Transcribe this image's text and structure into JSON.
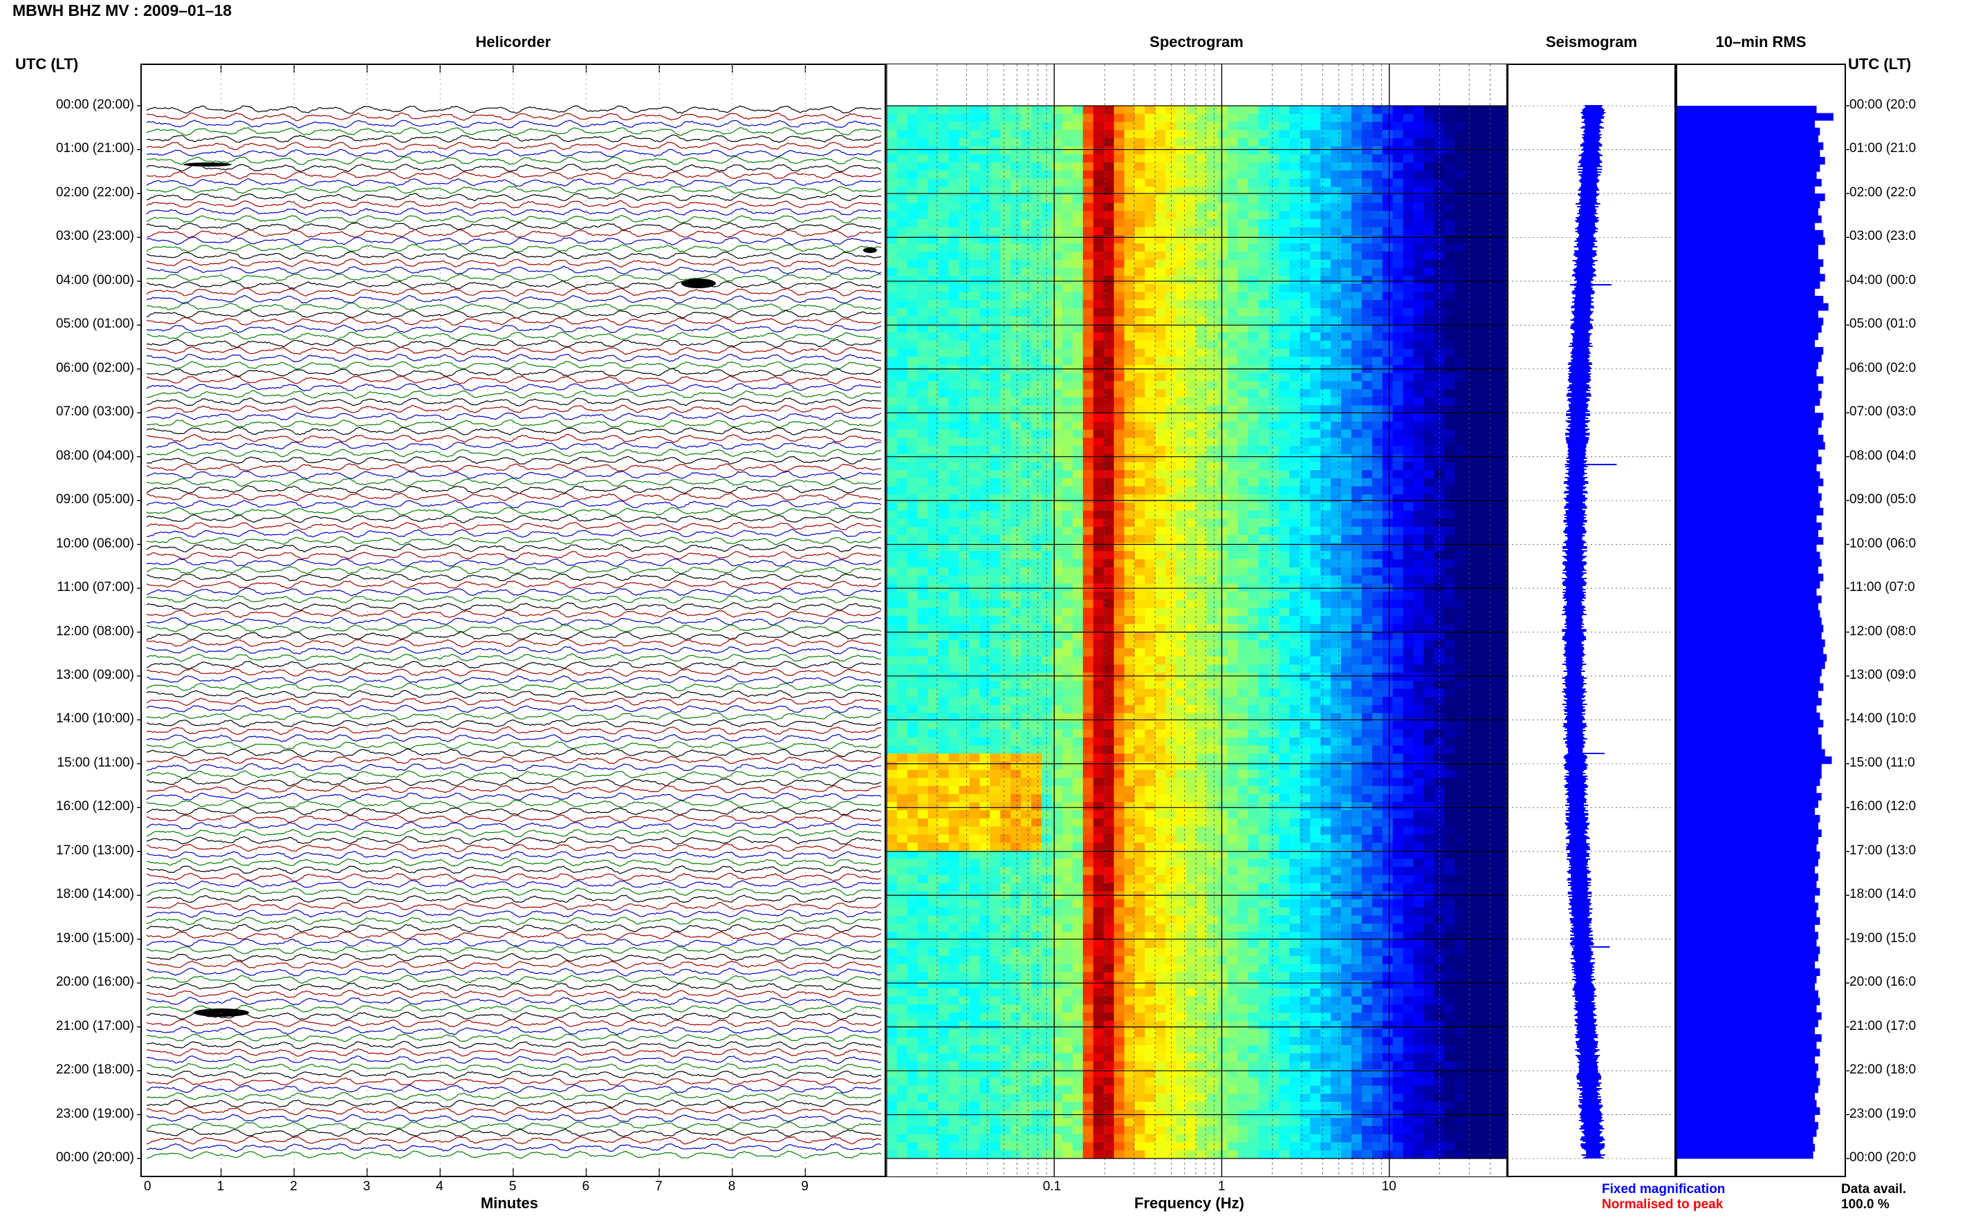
{
  "title": "MBWH BHZ MV : 2009–01–18",
  "headers": {
    "left_axis": "UTC (LT)",
    "right_axis": "UTC (LT)",
    "helicorder": "Helicorder",
    "spectrogram": "Spectrogram",
    "seismogram": "Seismogram",
    "rms": "10–min RMS"
  },
  "time_labels": [
    "00:00 (20:00)",
    "01:00 (21:00)",
    "02:00 (22:00)",
    "03:00 (23:00)",
    "04:00 (00:00)",
    "05:00 (01:00)",
    "06:00 (02:00)",
    "07:00 (03:00)",
    "08:00 (04:00)",
    "09:00 (05:00)",
    "10:00 (06:00)",
    "11:00 (07:00)",
    "12:00 (08:00)",
    "13:00 (09:00)",
    "14:00 (10:00)",
    "15:00 (11:00)",
    "16:00 (12:00)",
    "17:00 (13:00)",
    "18:00 (14:00)",
    "19:00 (15:00)",
    "20:00 (16:00)",
    "21:00 (17:00)",
    "22:00 (18:00)",
    "23:00 (19:00)",
    "00:00 (20:00)"
  ],
  "right_time_labels": [
    "00:00 (20:0",
    "01:00 (21:0",
    "02:00 (22:0",
    "03:00 (23:0",
    "04:00 (00:0",
    "05:00 (01:0",
    "06:00 (02:0",
    "07:00 (03:0",
    "08:00 (04:0",
    "09:00 (05:0",
    "10:00 (06:0",
    "11:00 (07:0",
    "12:00 (08:0",
    "13:00 (09:0",
    "14:00 (10:0",
    "15:00 (11:0",
    "16:00 (12:0",
    "17:00 (13:0",
    "18:00 (14:0",
    "19:00 (15:0",
    "20:00 (16:0",
    "21:00 (17:0",
    "22:00 (18:0",
    "23:00 (19:0",
    "00:00 (20:0"
  ],
  "footer": {
    "fixed": "Fixed magnification",
    "normalised": "Normalised to peak",
    "avail_label": "Data avail.",
    "avail_value": "100.0 %"
  },
  "colors": {
    "fixed": "#0000ff",
    "normalised": "#ff0000",
    "traces": [
      "#000000",
      "#a00000",
      "#0000c0",
      "#008000"
    ],
    "rms_bar": "#0000ff"
  },
  "chart_data": [
    {
      "type": "line",
      "panel": "helicorder",
      "title": "Helicorder",
      "xlabel": "Minutes",
      "xlim": [
        0,
        10
      ],
      "x_ticks": [
        "0",
        "1",
        "2",
        "3",
        "4",
        "5",
        "6",
        "7",
        "8",
        "9"
      ],
      "lines_per_hour": 6,
      "hours": 24
    },
    {
      "type": "heatmap",
      "panel": "spectrogram",
      "title": "Spectrogram",
      "xlabel": "Frequency (Hz)",
      "x_scale": "log",
      "xlim": [
        0.01,
        50
      ],
      "x_ticks": [
        "0.1",
        "1",
        "10"
      ],
      "peak_band_hz": [
        0.15,
        0.25
      ]
    },
    {
      "type": "line",
      "panel": "seismogram",
      "title": "Seismogram"
    },
    {
      "type": "bar",
      "panel": "rms",
      "title": "10–min RMS",
      "orientation": "horizontal",
      "values": [
        0.83,
        0.93,
        0.82,
        0.85,
        0.84,
        0.87,
        0.85,
        0.88,
        0.85,
        0.83,
        0.86,
        0.82,
        0.88,
        0.85,
        0.84,
        0.86,
        0.82,
        0.87,
        0.88,
        0.84,
        0.84,
        0.87,
        0.85,
        0.88,
        0.85,
        0.82,
        0.87,
        0.9,
        0.84,
        0.87,
        0.86,
        0.84,
        0.82,
        0.87,
        0.86,
        0.84,
        0.83,
        0.87,
        0.84,
        0.86,
        0.85,
        0.82,
        0.87,
        0.86,
        0.84,
        0.87,
        0.88,
        0.84,
        0.86,
        0.83,
        0.85,
        0.87,
        0.84,
        0.86,
        0.85,
        0.87,
        0.83,
        0.86,
        0.84,
        0.87,
        0.83,
        0.85,
        0.86,
        0.84,
        0.87,
        0.85,
        0.83,
        0.86,
        0.84,
        0.85,
        0.86,
        0.87,
        0.86,
        0.88,
        0.87,
        0.89,
        0.88,
        0.86,
        0.85,
        0.87,
        0.84,
        0.86,
        0.83,
        0.85,
        0.87,
        0.84,
        0.86,
        0.86,
        0.88,
        0.92,
        0.86,
        0.86,
        0.85,
        0.83,
        0.86,
        0.84,
        0.82,
        0.85,
        0.84,
        0.86,
        0.84,
        0.83,
        0.85,
        0.84,
        0.82,
        0.84,
        0.83,
        0.85,
        0.82,
        0.84,
        0.83,
        0.85,
        0.82,
        0.84,
        0.83,
        0.85,
        0.84,
        0.82,
        0.85,
        0.83,
        0.82,
        0.84,
        0.85,
        0.83,
        0.86,
        0.84,
        0.82,
        0.86,
        0.83,
        0.85,
        0.82,
        0.84,
        0.83,
        0.85,
        0.84,
        0.82,
        0.83,
        0.85,
        0.82,
        0.84,
        0.83,
        0.81,
        0.82,
        0.81
      ]
    }
  ]
}
